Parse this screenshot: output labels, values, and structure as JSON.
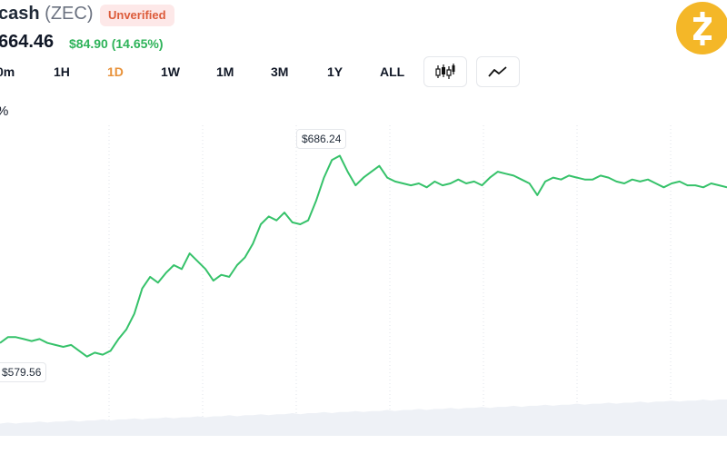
{
  "header": {
    "coin_name": "cash",
    "coin_symbol": "(ZEC)",
    "badge": "Unverified",
    "price": "664.46",
    "change": "$84.90 (14.65%)",
    "logo_icon": "zcash-logo-icon",
    "logo_color": "#f4b728"
  },
  "tabs": [
    {
      "label": "0m"
    },
    {
      "label": "1H"
    },
    {
      "label": "1D",
      "active": true
    },
    {
      "label": "1W"
    },
    {
      "label": "1M"
    },
    {
      "label": "3M"
    },
    {
      "label": "1Y"
    },
    {
      "label": "ALL"
    }
  ],
  "view_buttons": {
    "candlestick_icon": "candlestick-chart-icon",
    "line_icon": "line-chart-icon"
  },
  "axis_unit": "%",
  "colors": {
    "accent": "#e8923a",
    "up": "#2fb35a",
    "line": "#36c26a",
    "badge_text": "#dc5b3a"
  },
  "chart_data": {
    "type": "line",
    "high_label": "$686.24",
    "low_label": "$579.56",
    "y": [
      590,
      593,
      593,
      592,
      591,
      592,
      590,
      589,
      588,
      589,
      586,
      583,
      585,
      584,
      586,
      592,
      597,
      605,
      618,
      624,
      621,
      626,
      630,
      628,
      636,
      632,
      628,
      622,
      625,
      624,
      630,
      634,
      641,
      651,
      655,
      653,
      657,
      652,
      651,
      653,
      663,
      675,
      684,
      686.24,
      678,
      671,
      675,
      678,
      681,
      675,
      673,
      672,
      671,
      672,
      670,
      673,
      671,
      672,
      674,
      672,
      673,
      671,
      675,
      678,
      677,
      676,
      674,
      672,
      666,
      673,
      675,
      674,
      676,
      675,
      674,
      674,
      676,
      675,
      673,
      672,
      674,
      673,
      674,
      672,
      670,
      672,
      673,
      671,
      671,
      670,
      672,
      671,
      670
    ],
    "volume": [
      3,
      4,
      3,
      4,
      4,
      5,
      4,
      5,
      5,
      6,
      5,
      6,
      6,
      7,
      6,
      7,
      7,
      8,
      7,
      8,
      8,
      9,
      8,
      9,
      9,
      10,
      9,
      10,
      10,
      11,
      10,
      11,
      11,
      12,
      11,
      12,
      12,
      13,
      12,
      13,
      13,
      14,
      13,
      14,
      14,
      15,
      14,
      15,
      15,
      16,
      15,
      16,
      16,
      17,
      16,
      17,
      17,
      18,
      17,
      18,
      18,
      19,
      18,
      19,
      19,
      20,
      19,
      20,
      20,
      21,
      20,
      21,
      21,
      22,
      21,
      22,
      22,
      23,
      22,
      23,
      23,
      24,
      23,
      24,
      24,
      25,
      24,
      25,
      25,
      26,
      25,
      26,
      26
    ],
    "ylim": [
      560,
      700
    ],
    "grid": "vertical-dotted"
  }
}
